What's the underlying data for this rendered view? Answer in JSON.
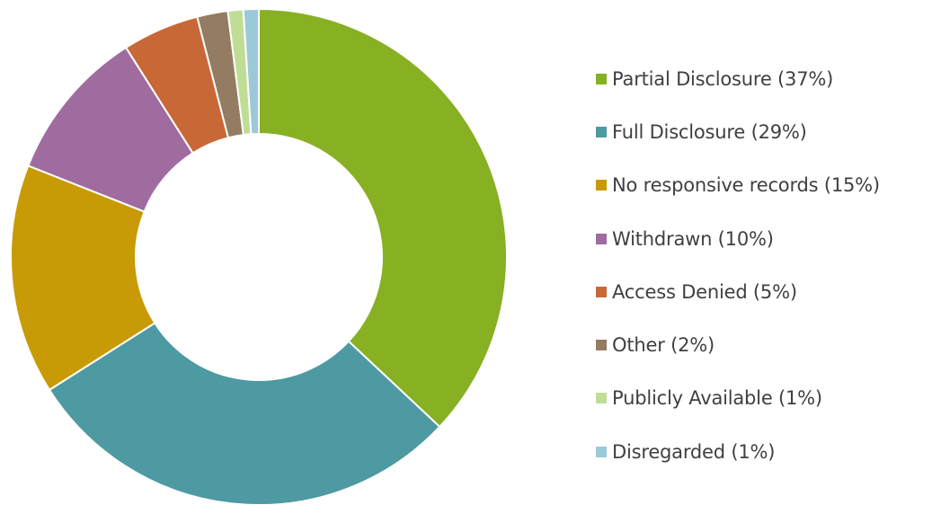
{
  "chart_data": {
    "type": "pie",
    "subtype": "donut",
    "title": "",
    "categories": [
      "Partial Disclosure",
      "Full Disclosure",
      "No responsive records",
      "Withdrawn",
      "Access Denied",
      "Other",
      "Publicly Available",
      "Disregarded"
    ],
    "values": [
      37,
      29,
      15,
      10,
      5,
      2,
      1,
      1
    ],
    "unit": "%",
    "colors": [
      "#87b023",
      "#4e9aa3",
      "#c89a06",
      "#a06c9f",
      "#c86837",
      "#937c61",
      "#c0dd96",
      "#9bc9d7"
    ],
    "legend_position": "right",
    "legend": [
      "Partial Disclosure (37%)",
      "Full Disclosure (29%)",
      "No responsive records (15%)",
      "Withdrawn (10%)",
      "Access Denied (5%)",
      "Other (2%)",
      "Publicly Available (1%)",
      "Disregarded (1%)"
    ]
  }
}
